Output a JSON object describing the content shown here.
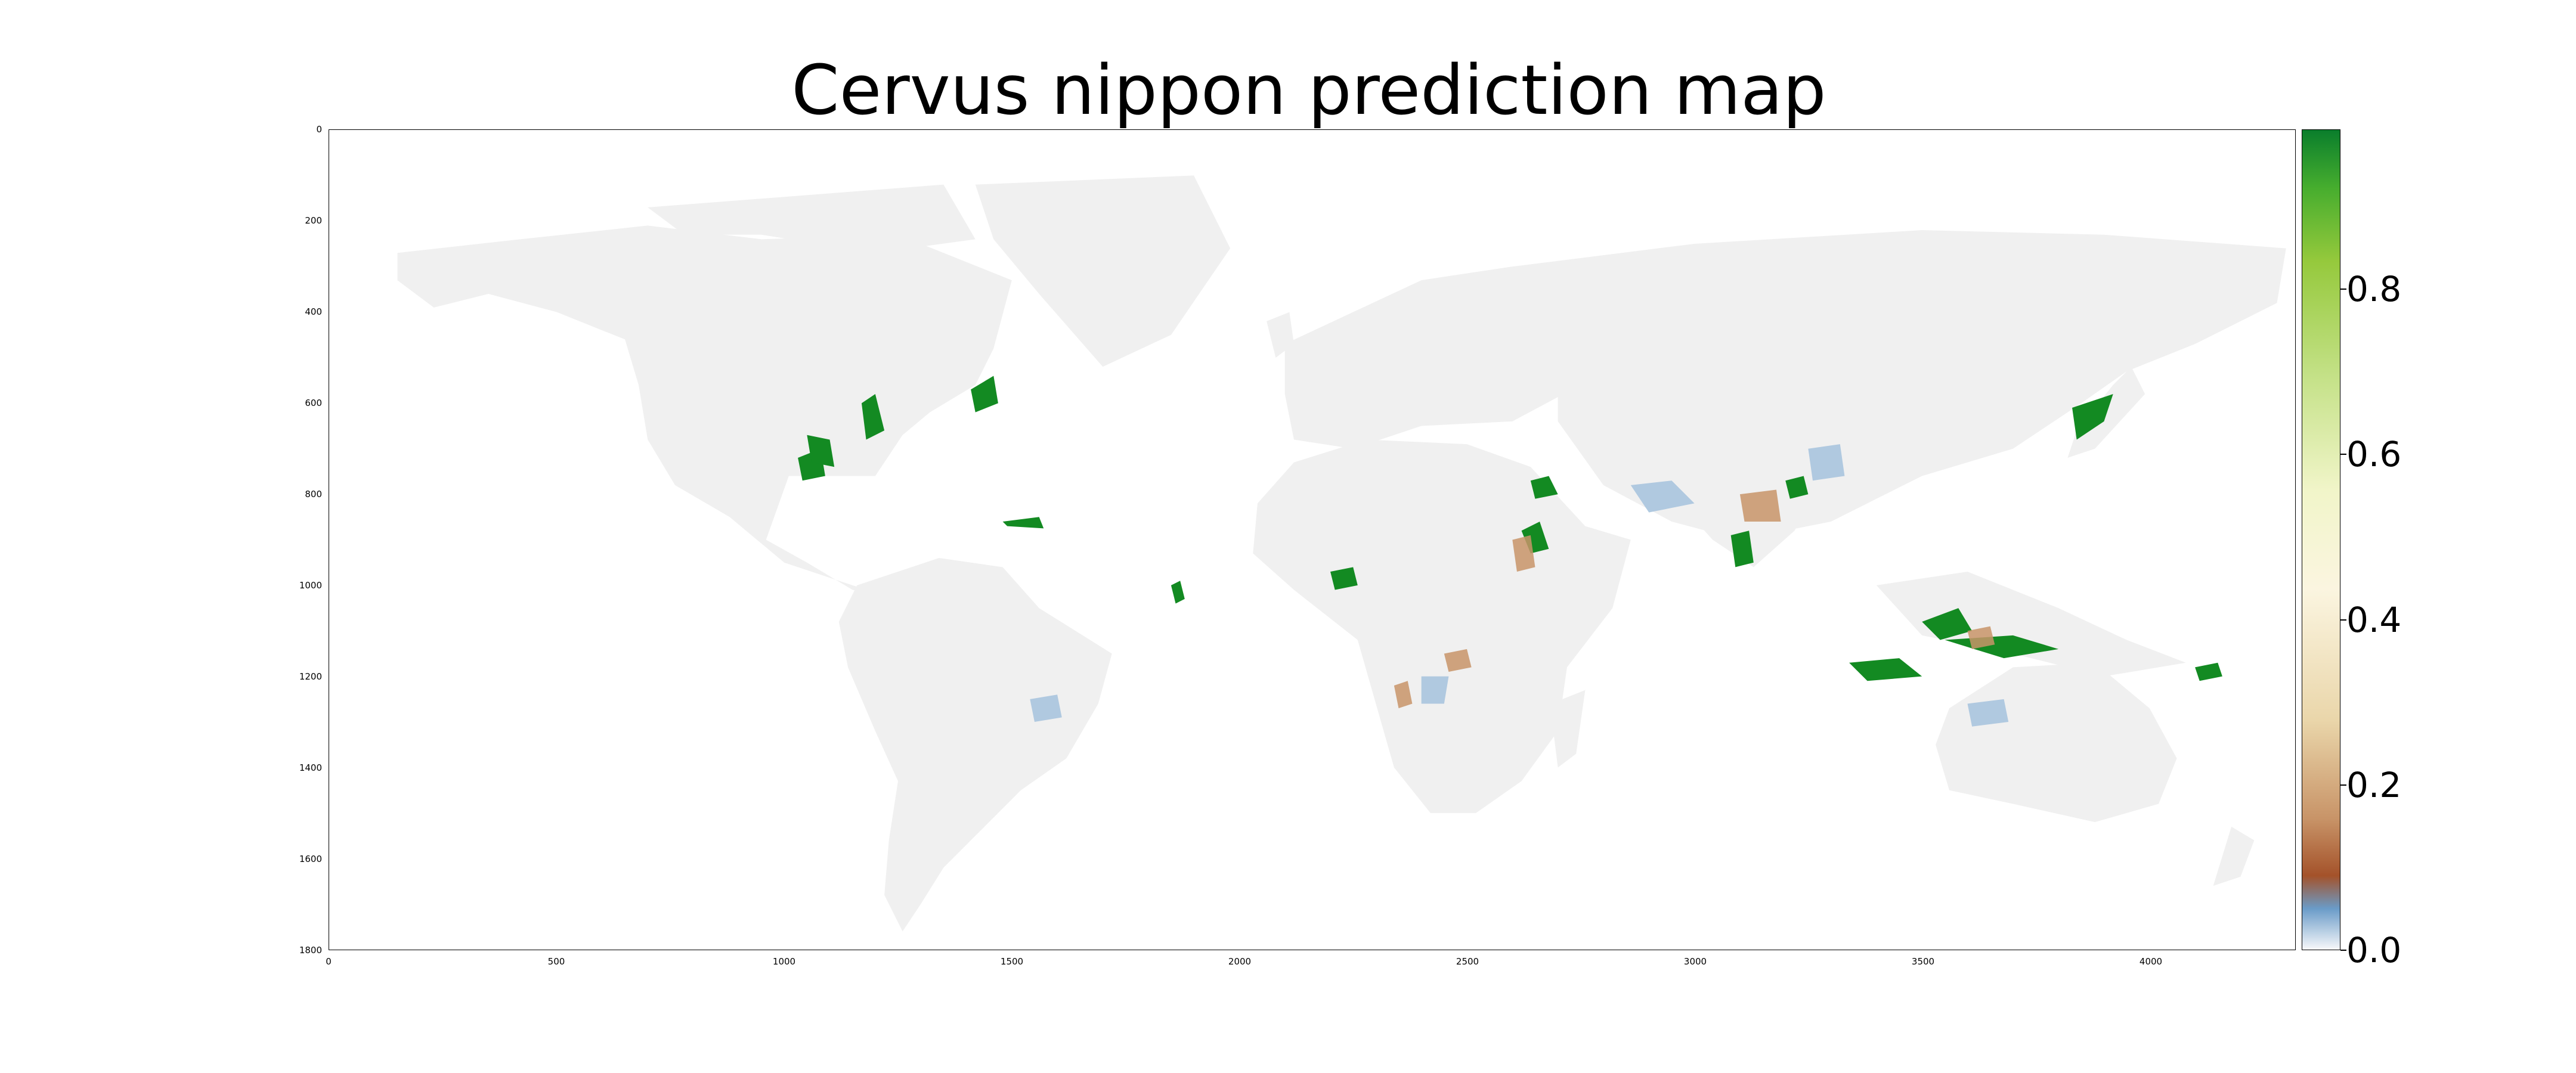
{
  "title": "Cervus nippon prediction map",
  "y_ticks": [
    "0",
    "200",
    "400",
    "600",
    "800",
    "1000",
    "1200",
    "1400",
    "1600",
    "1800"
  ],
  "x_ticks": [
    "0",
    "500",
    "1000",
    "1500",
    "2000",
    "2500",
    "3000",
    "3500",
    "4000"
  ],
  "colorbar": {
    "ticks": [
      "0.0",
      "0.2",
      "0.4",
      "0.6",
      "0.8"
    ],
    "range": [
      0,
      1
    ],
    "colors": [
      "#f7f8fa",
      "#6a9bc8",
      "#a4522a",
      "#c89468",
      "#ead6aa",
      "#fbf5e0",
      "#f1f5c9",
      "#c4e187",
      "#95c93c",
      "#46ad2e",
      "#0a7e2c"
    ]
  },
  "land_color": "#f0f0f0",
  "high_color": "#138a22"
}
